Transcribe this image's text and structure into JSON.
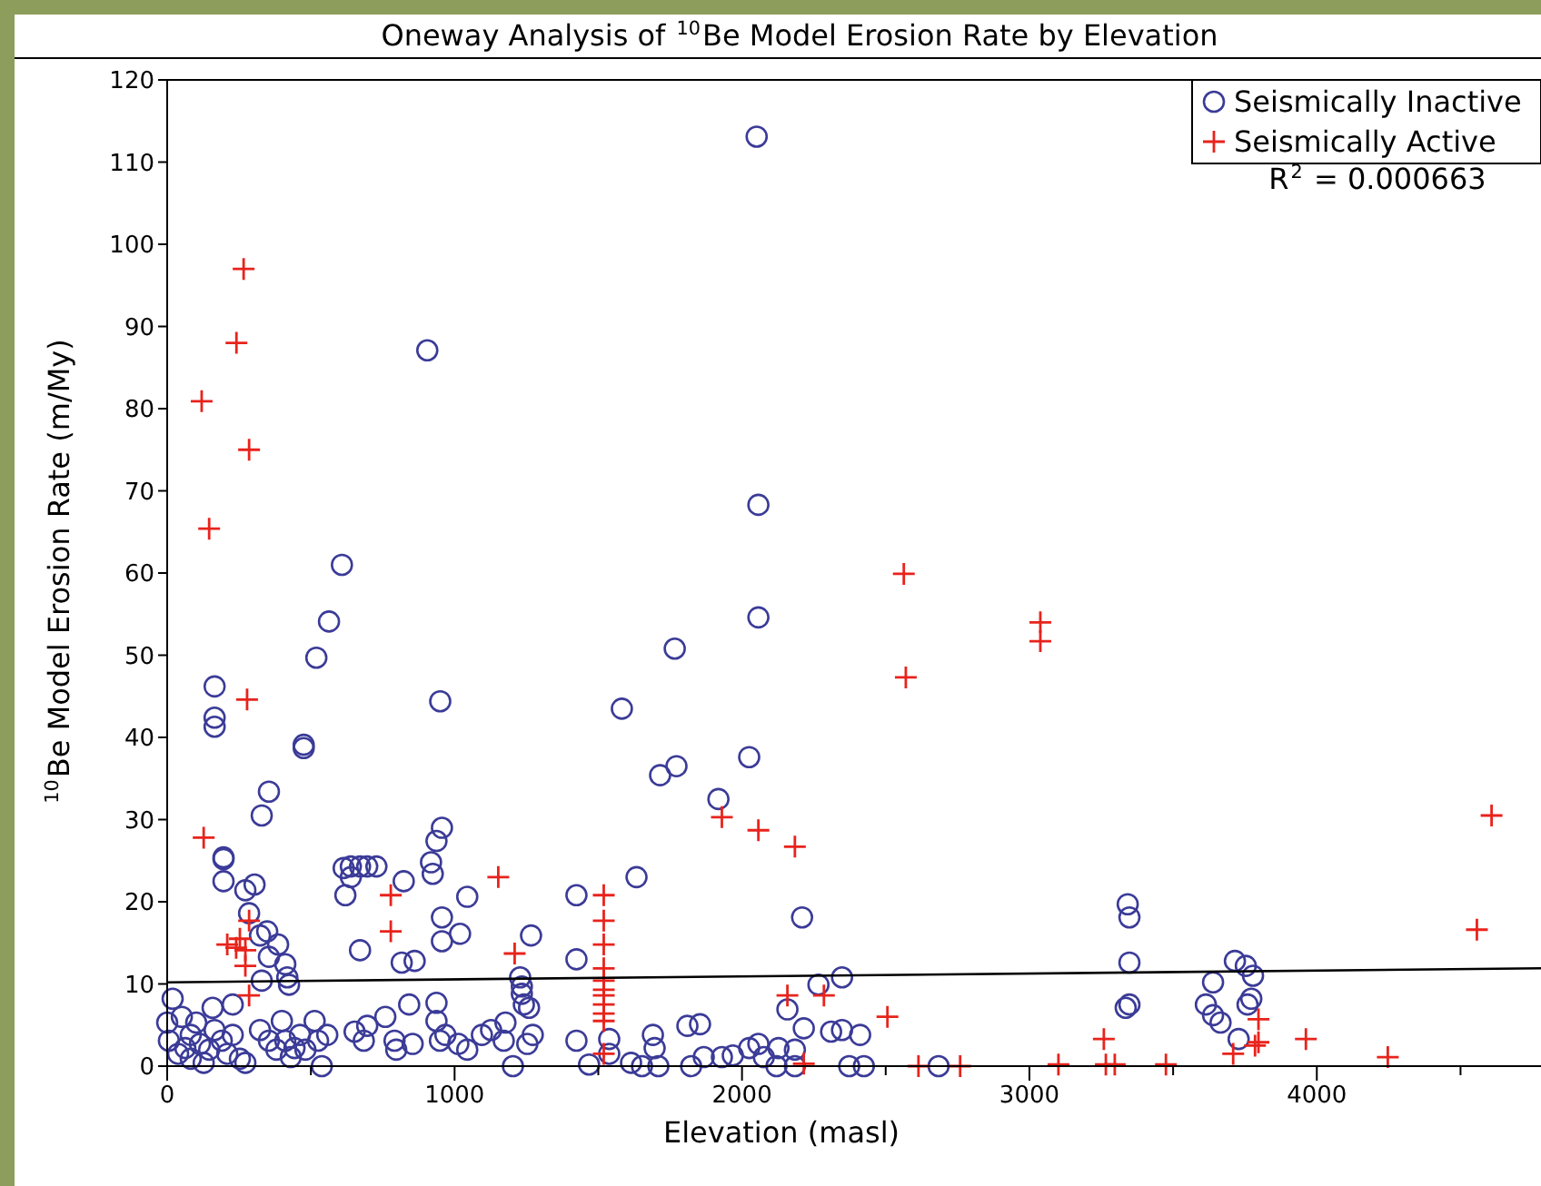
{
  "chart_data": {
    "type": "scatter",
    "title": "Oneway Analysis of $^{10}$Be Model Erosion Rate by Elevation",
    "xlabel": "Elevation (masl)",
    "ylabel": "$^{10}$Be Model Erosion Rate (m/My)",
    "xlim": [
      0,
      4780
    ],
    "ylim": [
      0,
      120
    ],
    "xticks": [
      0,
      {
        "value": 500,
        "label": null
      },
      1000,
      {
        "value": 1500,
        "label": null
      },
      2000,
      {
        "value": 2500,
        "label": null
      },
      3000,
      {
        "value": 3500,
        "label": null
      },
      4000,
      {
        "value": 4500,
        "label": null
      }
    ],
    "yticks": [
      0,
      10,
      20,
      30,
      40,
      50,
      60,
      70,
      80,
      90,
      100,
      110,
      120
    ],
    "grid": false,
    "legend": "top right",
    "annotations": [
      "R$^{2}$ = 0.000663"
    ],
    "series": [
      {
        "name": "Seismically Inactive",
        "color": "#3b3b98",
        "marker": "circle",
        "x": [
          2051,
          905,
          2057,
          2057,
          608,
          563,
          519,
          950,
          1582,
          1715,
          1772,
          1766,
          2025,
          1918,
          1633,
          2209,
          2266,
          2348,
          2158,
          2215,
          2310,
          2348,
          2411,
          1810,
          1854,
          1690,
          1696,
          1538,
          1538,
          1614,
          1652,
          1709,
          1823,
          1867,
          1930,
          1968,
          2025,
          2057,
          2076,
          2120,
          2127,
          2184,
          2184,
          2373,
          2424,
          2684,
          3342,
          3348,
          3348,
          3335,
          3348,
          3715,
          3753,
          3778,
          3639,
          3614,
          3639,
          3665,
          3728,
          3759,
          3772,
          165,
          165,
          165,
          475,
          475,
          354,
          329,
          196,
          196,
          196,
          272,
          304,
          285,
          323,
          348,
          386,
          354,
          411,
          418,
          424,
          329,
          614,
          639,
          671,
          696,
          728,
          620,
          639,
          671,
          823,
          816,
          861,
          956,
          937,
          918,
          924,
          956,
          956,
          1019,
          1044,
          1266,
          1228,
          1234,
          1234,
          1241,
          1259,
          1424,
          1424,
          1424,
          1468,
          19,
          0,
          51,
          82,
          114,
          146,
          165,
          190,
          209,
          228,
          228,
          158,
          253,
          38,
          82,
          127,
          6,
          272,
          101,
          63,
          323,
          354,
          399,
          411,
          443,
          462,
          481,
          513,
          525,
          557,
          380,
          430,
          652,
          684,
          696,
          759,
          791,
          797,
          842,
          854,
          937,
          937,
          949,
          968,
          1013,
          1044,
          1095,
          1127,
          1171,
          1177,
          1203,
          1253,
          1272,
          538
        ],
        "values": [
          113.1,
          87.1,
          68.3,
          54.6,
          61,
          54.1,
          49.7,
          44.4,
          43.5,
          35.4,
          36.5,
          50.8,
          37.6,
          32.5,
          23,
          18.1,
          9.9,
          10.8,
          6.9,
          4.6,
          4.2,
          4.4,
          3.8,
          4.9,
          5.1,
          3.8,
          2.2,
          3.3,
          1.5,
          0.4,
          0,
          0,
          0,
          1.1,
          1.1,
          1.3,
          2.2,
          2.7,
          1.1,
          0,
          2.2,
          2,
          0,
          0,
          0,
          0,
          19.7,
          18.1,
          12.6,
          7.1,
          7.5,
          12.8,
          12.2,
          11,
          10.2,
          7.5,
          6.2,
          5.3,
          3.3,
          7.5,
          8.2,
          46.2,
          42.4,
          41.3,
          39.1,
          38.7,
          33.4,
          30.5,
          25.4,
          25.2,
          22.5,
          21.4,
          22.1,
          18.6,
          15.9,
          16.4,
          14.8,
          13.3,
          12.4,
          10.8,
          9.9,
          10.4,
          24.1,
          24.3,
          24.3,
          24.3,
          24.3,
          20.8,
          23,
          14.1,
          22.5,
          12.6,
          12.8,
          29,
          27.4,
          24.8,
          23.4,
          18.1,
          15.2,
          16.1,
          20.6,
          15.9,
          10.8,
          9.7,
          8.8,
          7.5,
          7.1,
          20.8,
          13,
          3.1,
          0.2,
          8.2,
          5.3,
          6,
          3.8,
          2.7,
          2,
          4.4,
          3.1,
          1.5,
          3.8,
          7.5,
          7.1,
          0.9,
          1.5,
          0.9,
          0.4,
          3.1,
          0.4,
          5.3,
          2.2,
          4.4,
          3.1,
          5.5,
          3.1,
          2.2,
          3.8,
          2,
          5.5,
          3.1,
          3.8,
          2,
          1.1,
          4.2,
          3.1,
          4.9,
          6,
          3.1,
          2,
          7.5,
          2.7,
          7.7,
          5.5,
          3.1,
          3.8,
          2.7,
          2,
          3.8,
          4.4,
          3.1,
          5.3,
          0,
          2.7,
          3.8,
          0
        ]
      },
      {
        "name": "Seismically Active",
        "color": "#e8231c",
        "marker": "cross",
        "x": [
          120,
          146,
          266,
          241,
          285,
          278,
          127,
          209,
          240,
          272,
          285,
          272,
          285,
          253,
          778,
          778,
          1152,
          1209,
          1519,
          1519,
          1519,
          1519,
          1519,
          1519,
          1519,
          1519,
          1519,
          1519,
          1519,
          1930,
          2057,
          2184,
          2570,
          2563,
          3038,
          3038,
          2158,
          2285,
          2506,
          2215,
          2614,
          2759,
          3259,
          3266,
          3297,
          3101,
          3475,
          3709,
          3797,
          3797,
          3785,
          3962,
          4247,
          4557,
          4608
        ],
        "values": [
          80.9,
          65.4,
          97,
          88,
          75,
          44.6,
          27.8,
          14.8,
          14.4,
          14.1,
          17.7,
          12.2,
          8.6,
          15.5,
          20.8,
          16.4,
          23,
          13.7,
          20.8,
          17.7,
          14.8,
          11.9,
          10.4,
          9.3,
          8.6,
          7.5,
          6.4,
          5.5,
          1.5,
          30.3,
          28.7,
          26.7,
          47.3,
          59.9,
          54,
          51.7,
          8.6,
          8.6,
          6,
          0.3,
          0,
          0,
          3.3,
          0.2,
          0.2,
          0.2,
          0.2,
          1.5,
          5.7,
          2.9,
          2.5,
          3.3,
          1.1,
          16.6,
          30.5
        ]
      },
      {
        "type": "line",
        "color": "#000000",
        "marker": "none",
        "line_style": "solid",
        "x": [
          0,
          4780
        ],
        "values": [
          10.2,
          11.9
        ]
      }
    ]
  }
}
